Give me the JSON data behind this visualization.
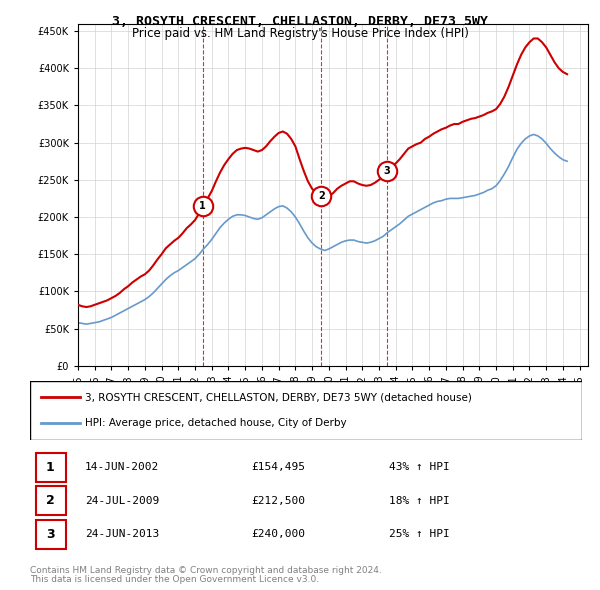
{
  "title": "3, ROSYTH CRESCENT, CHELLASTON, DERBY, DE73 5WY",
  "subtitle": "Price paid vs. HM Land Registry's House Price Index (HPI)",
  "legend_line1": "3, ROSYTH CRESCENT, CHELLASTON, DERBY, DE73 5WY (detached house)",
  "legend_line2": "HPI: Average price, detached house, City of Derby",
  "footer1": "Contains HM Land Registry data © Crown copyright and database right 2024.",
  "footer2": "This data is licensed under the Open Government Licence v3.0.",
  "transactions": [
    {
      "num": 1,
      "date": "14-JUN-2002",
      "price": "£154,495",
      "pct": "43% ↑ HPI",
      "year": 2002.45
    },
    {
      "num": 2,
      "date": "24-JUL-2009",
      "price": "£212,500",
      "pct": "18% ↑ HPI",
      "year": 2009.56
    },
    {
      "num": 3,
      "date": "24-JUN-2013",
      "price": "£240,000",
      "pct": "25% ↑ HPI",
      "year": 2013.48
    }
  ],
  "ylim": [
    0,
    460000
  ],
  "xlim_start": 1995.0,
  "xlim_end": 2025.5,
  "red_color": "#cc0000",
  "blue_color": "#6699cc",
  "dashed_color": "#cc0000",
  "hpi_red_series": {
    "years": [
      1995.0,
      1995.25,
      1995.5,
      1995.75,
      1996.0,
      1996.25,
      1996.5,
      1996.75,
      1997.0,
      1997.25,
      1997.5,
      1997.75,
      1998.0,
      1998.25,
      1998.5,
      1998.75,
      1999.0,
      1999.25,
      1999.5,
      1999.75,
      2000.0,
      2000.25,
      2000.5,
      2000.75,
      2001.0,
      2001.25,
      2001.5,
      2001.75,
      2002.0,
      2002.25,
      2002.5,
      2002.75,
      2003.0,
      2003.25,
      2003.5,
      2003.75,
      2004.0,
      2004.25,
      2004.5,
      2004.75,
      2005.0,
      2005.25,
      2005.5,
      2005.75,
      2006.0,
      2006.25,
      2006.5,
      2006.75,
      2007.0,
      2007.25,
      2007.5,
      2007.75,
      2008.0,
      2008.25,
      2008.5,
      2008.75,
      2009.0,
      2009.25,
      2009.5,
      2009.75,
      2010.0,
      2010.25,
      2010.5,
      2010.75,
      2011.0,
      2011.25,
      2011.5,
      2011.75,
      2012.0,
      2012.25,
      2012.5,
      2012.75,
      2013.0,
      2013.25,
      2013.5,
      2013.75,
      2014.0,
      2014.25,
      2014.5,
      2014.75,
      2015.0,
      2015.25,
      2015.5,
      2015.75,
      2016.0,
      2016.25,
      2016.5,
      2016.75,
      2017.0,
      2017.25,
      2017.5,
      2017.75,
      2018.0,
      2018.25,
      2018.5,
      2018.75,
      2019.0,
      2019.25,
      2019.5,
      2019.75,
      2020.0,
      2020.25,
      2020.5,
      2020.75,
      2021.0,
      2021.25,
      2021.5,
      2021.75,
      2022.0,
      2022.25,
      2022.5,
      2022.75,
      2023.0,
      2023.25,
      2023.5,
      2023.75,
      2024.0,
      2024.25
    ],
    "values": [
      82000,
      80000,
      79000,
      80000,
      82000,
      84000,
      86000,
      88000,
      91000,
      94000,
      98000,
      103000,
      107000,
      112000,
      116000,
      120000,
      123000,
      128000,
      135000,
      143000,
      150000,
      158000,
      163000,
      168000,
      172000,
      178000,
      185000,
      190000,
      196000,
      205000,
      215000,
      225000,
      235000,
      248000,
      260000,
      270000,
      278000,
      285000,
      290000,
      292000,
      293000,
      292000,
      290000,
      288000,
      290000,
      295000,
      302000,
      308000,
      313000,
      315000,
      312000,
      305000,
      295000,
      278000,
      262000,
      248000,
      238000,
      232000,
      228000,
      225000,
      228000,
      232000,
      238000,
      242000,
      245000,
      248000,
      248000,
      245000,
      243000,
      242000,
      243000,
      246000,
      250000,
      255000,
      262000,
      268000,
      272000,
      278000,
      285000,
      292000,
      295000,
      298000,
      300000,
      305000,
      308000,
      312000,
      315000,
      318000,
      320000,
      323000,
      325000,
      325000,
      328000,
      330000,
      332000,
      333000,
      335000,
      337000,
      340000,
      342000,
      345000,
      352000,
      362000,
      375000,
      390000,
      405000,
      418000,
      428000,
      435000,
      440000,
      440000,
      435000,
      428000,
      418000,
      408000,
      400000,
      395000,
      392000
    ]
  },
  "hpi_blue_series": {
    "years": [
      1995.0,
      1995.25,
      1995.5,
      1995.75,
      1996.0,
      1996.25,
      1996.5,
      1996.75,
      1997.0,
      1997.25,
      1997.5,
      1997.75,
      1998.0,
      1998.25,
      1998.5,
      1998.75,
      1999.0,
      1999.25,
      1999.5,
      1999.75,
      2000.0,
      2000.25,
      2000.5,
      2000.75,
      2001.0,
      2001.25,
      2001.5,
      2001.75,
      2002.0,
      2002.25,
      2002.5,
      2002.75,
      2003.0,
      2003.25,
      2003.5,
      2003.75,
      2004.0,
      2004.25,
      2004.5,
      2004.75,
      2005.0,
      2005.25,
      2005.5,
      2005.75,
      2006.0,
      2006.25,
      2006.5,
      2006.75,
      2007.0,
      2007.25,
      2007.5,
      2007.75,
      2008.0,
      2008.25,
      2008.5,
      2008.75,
      2009.0,
      2009.25,
      2009.5,
      2009.75,
      2010.0,
      2010.25,
      2010.5,
      2010.75,
      2011.0,
      2011.25,
      2011.5,
      2011.75,
      2012.0,
      2012.25,
      2012.5,
      2012.75,
      2013.0,
      2013.25,
      2013.5,
      2013.75,
      2014.0,
      2014.25,
      2014.5,
      2014.75,
      2015.0,
      2015.25,
      2015.5,
      2015.75,
      2016.0,
      2016.25,
      2016.5,
      2016.75,
      2017.0,
      2017.25,
      2017.5,
      2017.75,
      2018.0,
      2018.25,
      2018.5,
      2018.75,
      2019.0,
      2019.25,
      2019.5,
      2019.75,
      2020.0,
      2020.25,
      2020.5,
      2020.75,
      2021.0,
      2021.25,
      2021.5,
      2021.75,
      2022.0,
      2022.25,
      2022.5,
      2022.75,
      2023.0,
      2023.25,
      2023.5,
      2023.75,
      2024.0,
      2024.25
    ],
    "values": [
      58000,
      57000,
      56000,
      57000,
      58000,
      59000,
      61000,
      63000,
      65000,
      68000,
      71000,
      74000,
      77000,
      80000,
      83000,
      86000,
      89000,
      93000,
      98000,
      104000,
      110000,
      116000,
      121000,
      125000,
      128000,
      132000,
      136000,
      140000,
      144000,
      150000,
      157000,
      163000,
      170000,
      178000,
      186000,
      192000,
      197000,
      201000,
      203000,
      203000,
      202000,
      200000,
      198000,
      197000,
      199000,
      203000,
      207000,
      211000,
      214000,
      215000,
      212000,
      207000,
      200000,
      191000,
      181000,
      172000,
      165000,
      160000,
      157000,
      155000,
      157000,
      160000,
      163000,
      166000,
      168000,
      169000,
      169000,
      167000,
      166000,
      165000,
      166000,
      168000,
      171000,
      174000,
      179000,
      183000,
      187000,
      191000,
      196000,
      201000,
      204000,
      207000,
      210000,
      213000,
      216000,
      219000,
      221000,
      222000,
      224000,
      225000,
      225000,
      225000,
      226000,
      227000,
      228000,
      229000,
      231000,
      233000,
      236000,
      238000,
      242000,
      249000,
      258000,
      268000,
      280000,
      291000,
      299000,
      305000,
      309000,
      311000,
      309000,
      305000,
      299000,
      292000,
      286000,
      281000,
      277000,
      275000
    ]
  }
}
